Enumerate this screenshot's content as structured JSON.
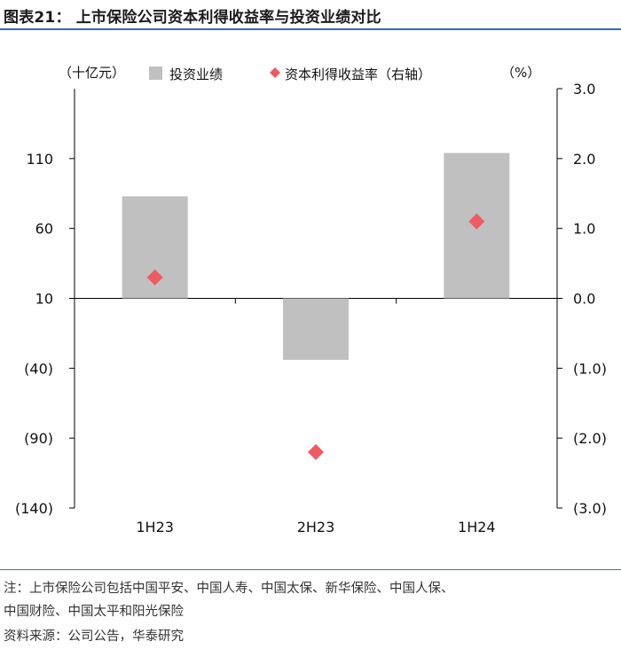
{
  "figure_label": "图表21：  上市保险公司资本利得收益率与投资业绩对比",
  "chart_data": {
    "type": "bar+scatter",
    "categories": [
      "1H23",
      "2H23",
      "1H24"
    ],
    "series": [
      {
        "name": "投资业绩",
        "kind": "bar",
        "axis": "left",
        "color": "#c0c0c0",
        "values": [
          83,
          -34,
          114
        ]
      },
      {
        "name": "资本利得收益率（右轴）",
        "kind": "scatter",
        "marker": "diamond",
        "axis": "right",
        "color": "#f05a62",
        "values": [
          0.3,
          -2.2,
          1.1
        ]
      }
    ],
    "left_axis": {
      "unit_label": "（十亿元）",
      "ticks": [
        "110",
        "60",
        "10",
        "(40)",
        "(90)",
        "(140)"
      ],
      "tick_values": [
        110,
        60,
        10,
        -40,
        -90,
        -140
      ],
      "range": [
        -140,
        160
      ]
    },
    "right_axis": {
      "unit_label": "（%）",
      "ticks": [
        "3.0",
        "2.0",
        "1.0",
        "0.0",
        "(1.0)",
        "(2.0)",
        "(3.0)"
      ],
      "tick_values": [
        3,
        2,
        1,
        0,
        -1,
        -2,
        -3
      ],
      "range": [
        -3,
        3
      ]
    },
    "legend_position": "top",
    "grid": false
  },
  "footnotes": {
    "note_line1": "注：上市保险公司包括中国平安、中国人寿、中国太保、新华保险、中国人保、",
    "note_line2": "中国财险、中国太平和阳光保险",
    "source": "资料来源：公司公告，华泰研究"
  }
}
